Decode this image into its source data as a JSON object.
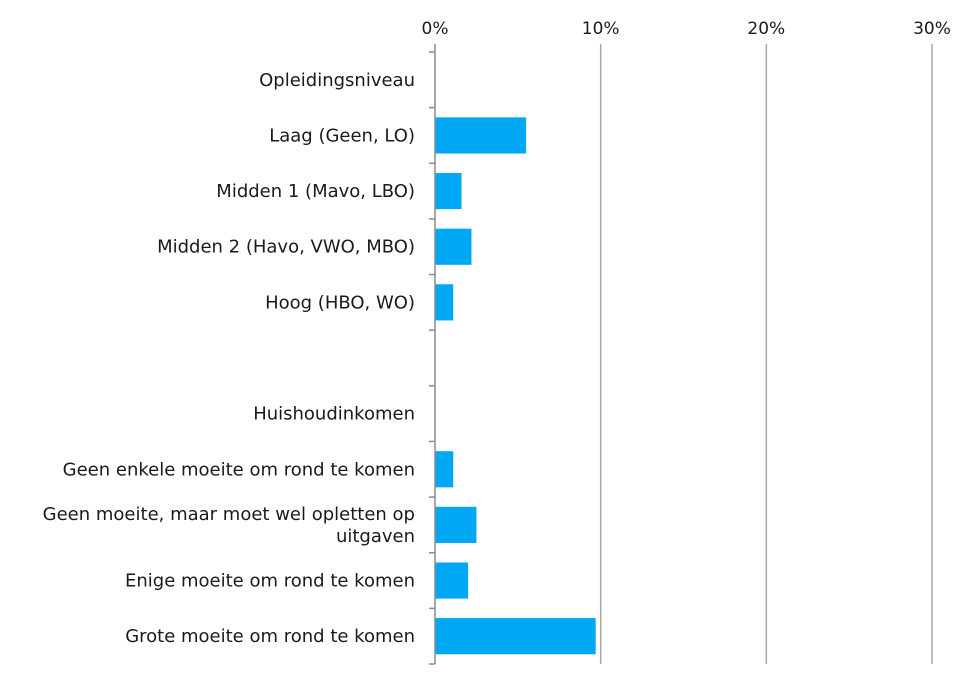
{
  "chart_data": {
    "type": "bar",
    "orientation": "horizontal",
    "xlim": [
      0,
      30
    ],
    "x_ticks": [
      "0%",
      "10%",
      "20%",
      "30%"
    ],
    "x_tick_values": [
      0,
      10,
      20,
      30
    ],
    "grid": true,
    "bar_color": "#00a8f3",
    "categories": [
      {
        "label": [
          "Opleidingsniveau"
        ],
        "value": null
      },
      {
        "label": [
          "Laag (Geen, LO)"
        ],
        "value": 5.5
      },
      {
        "label": [
          "Midden 1 (Mavo, LBO)"
        ],
        "value": 1.6
      },
      {
        "label": [
          "Midden 2 (Havo, VWO, MBO)"
        ],
        "value": 2.2
      },
      {
        "label": [
          "Hoog (HBO, WO)"
        ],
        "value": 1.1
      },
      {
        "label": [
          ""
        ],
        "value": null
      },
      {
        "label": [
          "Huishoudinkomen"
        ],
        "value": null
      },
      {
        "label": [
          "Geen enkele moeite om rond te komen"
        ],
        "value": 1.1
      },
      {
        "label": [
          "Geen moeite, maar moet wel opletten op",
          "uitgaven"
        ],
        "value": 2.5
      },
      {
        "label": [
          "Enige moeite om rond te komen"
        ],
        "value": 2.0
      },
      {
        "label": [
          "Grote moeite om rond te komen"
        ],
        "value": 9.7
      }
    ]
  }
}
